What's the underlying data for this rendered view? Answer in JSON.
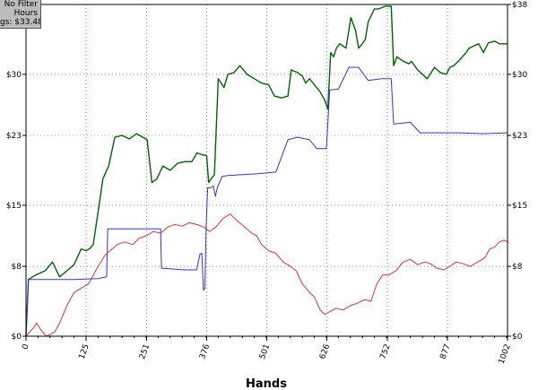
{
  "filter_box": {
    "line1": "No Filter",
    "line2": "Hours",
    "line3": "gs: $33.48"
  },
  "chart_data": {
    "type": "line",
    "title": "",
    "xlabel": "Hands",
    "ylabel": "",
    "xlim": [
      0,
      1002
    ],
    "ylim": [
      0,
      38
    ],
    "x_ticks": [
      0,
      125,
      251,
      376,
      501,
      626,
      752,
      877,
      1002
    ],
    "y_ticks": [
      0,
      8,
      15,
      23,
      30,
      38
    ],
    "y_tick_labels": [
      "$0",
      "$8",
      "$15",
      "$23",
      "$30",
      "$38"
    ],
    "grid": true,
    "colors": {
      "green": "#006400",
      "blue": "#3333dd",
      "red": "#dd3333"
    },
    "series": [
      {
        "color": "#006400",
        "points": [
          [
            0,
            0
          ],
          [
            5,
            6.5
          ],
          [
            20,
            7
          ],
          [
            40,
            7.5
          ],
          [
            55,
            8.5
          ],
          [
            70,
            6.8
          ],
          [
            85,
            7.5
          ],
          [
            100,
            8.2
          ],
          [
            115,
            10
          ],
          [
            125,
            9.8
          ],
          [
            132,
            10
          ],
          [
            140,
            10.5
          ],
          [
            152,
            15
          ],
          [
            160,
            18
          ],
          [
            172,
            19.5
          ],
          [
            185,
            22.8
          ],
          [
            200,
            23
          ],
          [
            215,
            22.6
          ],
          [
            230,
            23.2
          ],
          [
            252,
            22.5
          ],
          [
            262,
            17.6
          ],
          [
            272,
            18
          ],
          [
            285,
            19.5
          ],
          [
            300,
            19
          ],
          [
            315,
            19.8
          ],
          [
            330,
            20
          ],
          [
            345,
            20
          ],
          [
            356,
            21
          ],
          [
            366,
            20.8
          ],
          [
            376,
            20.7
          ],
          [
            380,
            17.6
          ],
          [
            385,
            18
          ],
          [
            392,
            18.5
          ],
          [
            400,
            29.5
          ],
          [
            412,
            28.5
          ],
          [
            420,
            30
          ],
          [
            433,
            30.2
          ],
          [
            445,
            31
          ],
          [
            460,
            30
          ],
          [
            475,
            29.5
          ],
          [
            490,
            29
          ],
          [
            505,
            28.8
          ],
          [
            517,
            27.5
          ],
          [
            532,
            27.3
          ],
          [
            545,
            27.5
          ],
          [
            552,
            30.5
          ],
          [
            565,
            30.2
          ],
          [
            575,
            29.8
          ],
          [
            582,
            29
          ],
          [
            590,
            29.5
          ],
          [
            600,
            28.8
          ],
          [
            612,
            28
          ],
          [
            622,
            27
          ],
          [
            628,
            26
          ],
          [
            634,
            32.5
          ],
          [
            640,
            32
          ],
          [
            646,
            33
          ],
          [
            653,
            33.5
          ],
          [
            666,
            33
          ],
          [
            676,
            36.5
          ],
          [
            686,
            35
          ],
          [
            692,
            33
          ],
          [
            700,
            33.5
          ],
          [
            706,
            34
          ],
          [
            712,
            36
          ],
          [
            725,
            37.5
          ],
          [
            734,
            37.5
          ],
          [
            748,
            37.8
          ],
          [
            760,
            37.8
          ],
          [
            765,
            31
          ],
          [
            772,
            32
          ],
          [
            785,
            31.5
          ],
          [
            797,
            31.2
          ],
          [
            802,
            31.5
          ],
          [
            815,
            30.5
          ],
          [
            835,
            29.5
          ],
          [
            850,
            30.8
          ],
          [
            862,
            30.2
          ],
          [
            875,
            30
          ],
          [
            882,
            30.8
          ],
          [
            890,
            31
          ],
          [
            900,
            31.5
          ],
          [
            908,
            32
          ],
          [
            916,
            32.5
          ],
          [
            922,
            33
          ],
          [
            930,
            33.2
          ],
          [
            942,
            33.5
          ],
          [
            952,
            32.5
          ],
          [
            962,
            33.6
          ],
          [
            975,
            33.8
          ],
          [
            985,
            33.5
          ],
          [
            1002,
            33.5
          ]
        ]
      },
      {
        "color": "#3333dd",
        "points": [
          [
            0,
            0
          ],
          [
            5,
            6.5
          ],
          [
            60,
            6.5
          ],
          [
            100,
            6.5
          ],
          [
            150,
            6.6
          ],
          [
            168,
            6.8
          ],
          [
            170,
            12.3
          ],
          [
            280,
            12.3
          ],
          [
            282,
            7.8
          ],
          [
            330,
            7.6
          ],
          [
            355,
            7.6
          ],
          [
            362,
            9.4
          ],
          [
            366,
            9.5
          ],
          [
            369,
            5.3
          ],
          [
            372,
            5.4
          ],
          [
            375,
            12.8
          ],
          [
            378,
            17
          ],
          [
            384,
            17
          ],
          [
            390,
            17.2
          ],
          [
            394,
            16
          ],
          [
            398,
            17
          ],
          [
            408,
            18.3
          ],
          [
            420,
            18.4
          ],
          [
            480,
            18.6
          ],
          [
            520,
            18.8
          ],
          [
            545,
            22.5
          ],
          [
            565,
            22.8
          ],
          [
            590,
            22.5
          ],
          [
            605,
            21.5
          ],
          [
            625,
            21.5
          ],
          [
            632,
            28.2
          ],
          [
            650,
            28.3
          ],
          [
            672,
            30.8
          ],
          [
            692,
            30.8
          ],
          [
            712,
            29.3
          ],
          [
            740,
            29.5
          ],
          [
            760,
            29.5
          ],
          [
            765,
            24.3
          ],
          [
            800,
            24.5
          ],
          [
            820,
            23.3
          ],
          [
            900,
            23.3
          ],
          [
            950,
            23.2
          ],
          [
            1002,
            23.3
          ]
        ]
      },
      {
        "color": "#dd3333",
        "points": [
          [
            0,
            0
          ],
          [
            8,
            0.5
          ],
          [
            16,
            1
          ],
          [
            22,
            1.5
          ],
          [
            30,
            0.8
          ],
          [
            42,
            0
          ],
          [
            50,
            0.2
          ],
          [
            60,
            0.5
          ],
          [
            70,
            1.5
          ],
          [
            85,
            3.5
          ],
          [
            100,
            5
          ],
          [
            115,
            5.5
          ],
          [
            130,
            6
          ],
          [
            150,
            8
          ],
          [
            165,
            9.3
          ],
          [
            175,
            9.8
          ],
          [
            190,
            10.5
          ],
          [
            205,
            10.8
          ],
          [
            222,
            10.5
          ],
          [
            235,
            11.2
          ],
          [
            250,
            11.5
          ],
          [
            265,
            12
          ],
          [
            280,
            11.8
          ],
          [
            295,
            12.5
          ],
          [
            310,
            12.8
          ],
          [
            325,
            12.6
          ],
          [
            340,
            13
          ],
          [
            355,
            12.8
          ],
          [
            370,
            12.5
          ],
          [
            382,
            12
          ],
          [
            395,
            12.5
          ],
          [
            410,
            13.5
          ],
          [
            425,
            14
          ],
          [
            440,
            13.2
          ],
          [
            455,
            12.5
          ],
          [
            470,
            11.8
          ],
          [
            480,
            11.5
          ],
          [
            490,
            10.5
          ],
          [
            505,
            9.8
          ],
          [
            520,
            9.5
          ],
          [
            535,
            8.5
          ],
          [
            550,
            8
          ],
          [
            562,
            7.5
          ],
          [
            575,
            6
          ],
          [
            590,
            5
          ],
          [
            600,
            4.5
          ],
          [
            612,
            3
          ],
          [
            622,
            2.5
          ],
          [
            632,
            2.8
          ],
          [
            645,
            3.2
          ],
          [
            660,
            3
          ],
          [
            675,
            3.5
          ],
          [
            690,
            3.8
          ],
          [
            705,
            4.2
          ],
          [
            718,
            4
          ],
          [
            730,
            6
          ],
          [
            742,
            7
          ],
          [
            755,
            7
          ],
          [
            770,
            7.5
          ],
          [
            785,
            8.5
          ],
          [
            800,
            8.8
          ],
          [
            815,
            8.2
          ],
          [
            830,
            8.5
          ],
          [
            842,
            8.3
          ],
          [
            855,
            7.8
          ],
          [
            870,
            7.6
          ],
          [
            882,
            8
          ],
          [
            895,
            8.5
          ],
          [
            910,
            8.3
          ],
          [
            925,
            8
          ],
          [
            940,
            8.5
          ],
          [
            955,
            9
          ],
          [
            965,
            10
          ],
          [
            975,
            10.2
          ],
          [
            985,
            10.8
          ],
          [
            995,
            11
          ],
          [
            1002,
            10.8
          ]
        ]
      }
    ]
  }
}
